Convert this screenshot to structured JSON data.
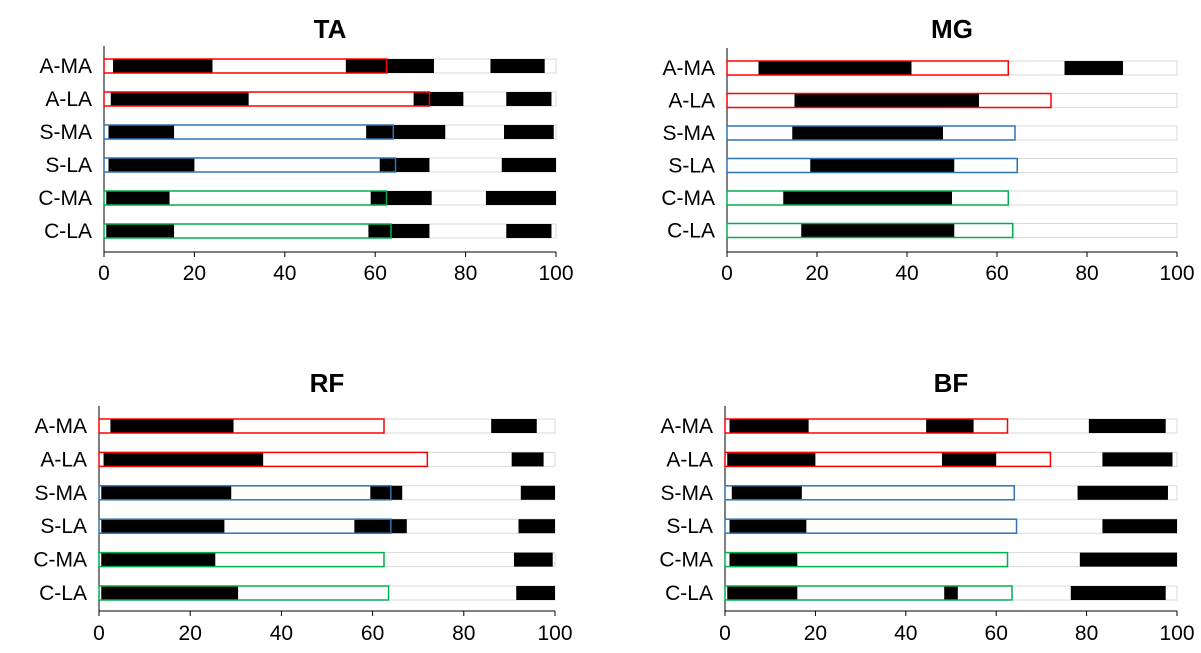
{
  "colors": {
    "A": "#ff0000",
    "S": "#2e75b6",
    "C": "#00b050",
    "black_segment": "#000000",
    "gray_outline": "#d9d9d9"
  },
  "chart_data": [
    {
      "type": "bar",
      "orientation": "horizontal",
      "title": "TA",
      "categories": [
        "A-MA",
        "A-LA",
        "S-MA",
        "S-LA",
        "C-MA",
        "C-LA"
      ],
      "xlim": [
        0,
        100
      ],
      "xticks": [
        "0",
        "20",
        "40",
        "60",
        "80",
        "100"
      ],
      "bars": [
        {
          "cycle_end": 62.5,
          "color_group": "A",
          "black_segments": [
            [
              2,
              24
            ],
            [
              53.5,
              62.5
            ],
            [
              62.5,
              73
            ],
            [
              85.5,
              97.5
            ]
          ]
        },
        {
          "cycle_end": 72,
          "color_group": "A",
          "black_segments": [
            [
              1.5,
              32
            ],
            [
              68.5,
              72
            ],
            [
              72,
              79.5
            ],
            [
              89,
              99
            ]
          ]
        },
        {
          "cycle_end": 64,
          "color_group": "S",
          "black_segments": [
            [
              1,
              15.5
            ],
            [
              58,
              64
            ],
            [
              64,
              75.5
            ],
            [
              88.5,
              99.5
            ]
          ]
        },
        {
          "cycle_end": 64.5,
          "color_group": "S",
          "black_segments": [
            [
              1,
              20
            ],
            [
              61,
              64.5
            ],
            [
              64.5,
              72
            ],
            [
              88,
              100
            ]
          ]
        },
        {
          "cycle_end": 62.5,
          "color_group": "C",
          "black_segments": [
            [
              0.5,
              14.5
            ],
            [
              59,
              62.5
            ],
            [
              62.5,
              72.5
            ],
            [
              84.5,
              100
            ]
          ]
        },
        {
          "cycle_end": 63.5,
          "color_group": "C",
          "black_segments": [
            [
              0.5,
              15.5
            ],
            [
              58.5,
              63.5
            ],
            [
              63.5,
              72
            ],
            [
              89,
              99
            ]
          ]
        }
      ]
    },
    {
      "type": "bar",
      "orientation": "horizontal",
      "title": "MG",
      "categories": [
        "A-MA",
        "A-LA",
        "S-MA",
        "S-LA",
        "C-MA",
        "C-LA"
      ],
      "xlim": [
        0,
        100
      ],
      "xticks": [
        "0",
        "20",
        "40",
        "60",
        "80",
        "100"
      ],
      "bars": [
        {
          "cycle_end": 62.5,
          "color_group": "A",
          "black_segments": [
            [
              7,
              41
            ],
            [
              75,
              88
            ]
          ]
        },
        {
          "cycle_end": 72,
          "color_group": "A",
          "black_segments": [
            [
              15,
              56
            ]
          ]
        },
        {
          "cycle_end": 64,
          "color_group": "S",
          "black_segments": [
            [
              14.5,
              48
            ]
          ]
        },
        {
          "cycle_end": 64.5,
          "color_group": "S",
          "black_segments": [
            [
              18.5,
              50.5
            ]
          ]
        },
        {
          "cycle_end": 62.5,
          "color_group": "C",
          "black_segments": [
            [
              12.5,
              50
            ]
          ]
        },
        {
          "cycle_end": 63.5,
          "color_group": "C",
          "black_segments": [
            [
              16.5,
              50.5
            ]
          ]
        }
      ]
    },
    {
      "type": "bar",
      "orientation": "horizontal",
      "title": "RF",
      "categories": [
        "A-MA",
        "A-LA",
        "S-MA",
        "S-LA",
        "C-MA",
        "C-LA"
      ],
      "xlim": [
        0,
        100
      ],
      "xticks": [
        "0",
        "20",
        "40",
        "60",
        "80",
        "100"
      ],
      "bars": [
        {
          "cycle_end": 62.5,
          "color_group": "A",
          "black_segments": [
            [
              2.5,
              29.5
            ],
            [
              86,
              96
            ]
          ]
        },
        {
          "cycle_end": 72,
          "color_group": "A",
          "black_segments": [
            [
              1,
              36
            ],
            [
              90.5,
              97.5
            ]
          ]
        },
        {
          "cycle_end": 64,
          "color_group": "S",
          "black_segments": [
            [
              0.5,
              29
            ],
            [
              59.5,
              64
            ],
            [
              64,
              66.5
            ],
            [
              92.5,
              100
            ]
          ]
        },
        {
          "cycle_end": 64,
          "color_group": "S",
          "black_segments": [
            [
              0.5,
              27.5
            ],
            [
              56,
              64
            ],
            [
              64,
              67.5
            ],
            [
              92,
              100
            ]
          ]
        },
        {
          "cycle_end": 62.5,
          "color_group": "C",
          "black_segments": [
            [
              0.5,
              25.5
            ],
            [
              91,
              99.5
            ]
          ]
        },
        {
          "cycle_end": 63.5,
          "color_group": "C",
          "black_segments": [
            [
              0.5,
              30.5
            ],
            [
              91.5,
              100
            ]
          ]
        }
      ]
    },
    {
      "type": "bar",
      "orientation": "horizontal",
      "title": "BF",
      "categories": [
        "A-MA",
        "A-LA",
        "S-MA",
        "S-LA",
        "C-MA",
        "C-LA"
      ],
      "xlim": [
        0,
        100
      ],
      "xticks": [
        "0",
        "20",
        "40",
        "60",
        "80",
        "100"
      ],
      "bars": [
        {
          "cycle_end": 62.5,
          "color_group": "A",
          "black_segments": [
            [
              1,
              18.5
            ],
            [
              44.5,
              55
            ],
            [
              80.5,
              97.5
            ]
          ]
        },
        {
          "cycle_end": 72,
          "color_group": "A",
          "black_segments": [
            [
              0.5,
              20
            ],
            [
              48,
              60
            ],
            [
              83.5,
              99
            ]
          ]
        },
        {
          "cycle_end": 64,
          "color_group": "S",
          "black_segments": [
            [
              1.5,
              17
            ],
            [
              78,
              98
            ]
          ]
        },
        {
          "cycle_end": 64.5,
          "color_group": "S",
          "black_segments": [
            [
              1,
              18
            ],
            [
              83.5,
              100
            ]
          ]
        },
        {
          "cycle_end": 62.5,
          "color_group": "C",
          "black_segments": [
            [
              1,
              16
            ],
            [
              78.5,
              100
            ]
          ]
        },
        {
          "cycle_end": 63.5,
          "color_group": "C",
          "black_segments": [
            [
              0.5,
              16
            ],
            [
              48.5,
              51.5
            ],
            [
              76.5,
              97.5
            ]
          ]
        }
      ]
    }
  ]
}
